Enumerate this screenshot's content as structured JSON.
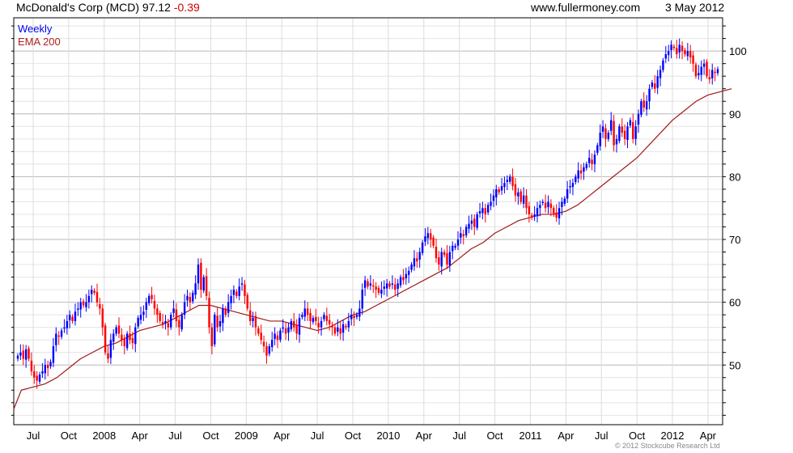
{
  "header": {
    "title": "McDonald's Corp (MCD) 97.12",
    "change": "-0.39",
    "site": "www.fullermoney.com",
    "date": "3 May 2012",
    "copyright": "© 2012 Stockcube Research Ltd"
  },
  "chart_data": {
    "type": "candlestick",
    "title": "McDonald's Corp (MCD)",
    "legend": [
      "Weekly",
      "EMA 200"
    ],
    "legend_position": "top-left",
    "colors": {
      "up": "#0000ff",
      "down": "#ff0000",
      "ema": "#a01818"
    },
    "ylim": [
      40.5,
      105.3
    ],
    "y_ticks": [
      50,
      60,
      70,
      80,
      90,
      100
    ],
    "x_ticks": [
      "Jul",
      "Oct",
      "2008",
      "Apr",
      "Jul",
      "Oct",
      "2009",
      "Apr",
      "Jul",
      "Oct",
      "2010",
      "Apr",
      "Jul",
      "Oct",
      "2011",
      "Apr",
      "Jul",
      "Oct",
      "2012",
      "Apr"
    ],
    "x_tick_months": [
      1,
      4,
      7,
      10,
      13,
      16,
      19,
      22,
      25,
      28,
      31,
      34,
      37,
      40,
      43,
      46,
      49,
      52,
      55,
      58
    ],
    "first_month": "Jun 2007",
    "weekly_close": [
      51.5,
      52,
      51,
      52.5,
      51,
      49,
      48,
      47.5,
      48.5,
      49,
      50,
      49.5,
      50.5,
      53,
      55,
      54.5,
      55.5,
      56,
      57,
      58,
      57,
      58.5,
      59,
      60,
      59.5,
      60,
      61,
      62,
      61.5,
      60,
      59,
      56,
      52,
      51,
      54,
      55,
      56,
      55,
      54,
      53,
      55,
      54,
      53.5,
      56,
      57.5,
      58,
      58.5,
      60,
      61,
      60.5,
      59,
      58,
      57,
      56.5,
      57,
      56,
      58,
      59,
      57,
      56,
      58,
      60,
      61,
      60,
      61.5,
      63,
      66,
      62,
      64,
      61,
      56,
      53,
      58,
      56,
      57,
      59,
      58,
      60,
      61,
      62,
      61,
      62.5,
      63,
      61,
      59,
      57,
      57.5,
      56,
      55,
      54,
      53,
      51.5,
      53,
      54,
      55,
      54,
      55.5,
      56,
      55,
      56,
      57,
      56,
      55,
      57.5,
      58,
      59,
      58,
      57,
      57.5,
      57,
      56,
      57,
      58,
      57,
      56.5,
      56,
      55,
      56,
      55,
      56.5,
      56,
      57,
      58,
      57.5,
      58,
      59,
      62,
      63.5,
      62.5,
      63,
      62.5,
      62,
      61.5,
      62,
      62.5,
      63,
      62.5,
      63,
      62,
      63,
      64,
      63.5,
      64.5,
      65,
      66,
      67,
      66.5,
      68,
      69.5,
      70.5,
      71,
      70,
      69,
      67,
      66,
      68,
      67.5,
      66,
      68,
      69,
      69,
      70,
      71,
      70.5,
      72,
      72.5,
      73,
      72,
      74,
      74.5,
      75,
      74,
      75.5,
      76,
      77,
      78,
      77.5,
      78.5,
      79,
      79.5,
      80,
      78.5,
      77,
      77.5,
      76,
      77,
      75,
      74,
      73.5,
      74,
      75,
      75.5,
      76,
      75,
      76,
      75,
      74,
      73.5,
      75,
      76,
      76.5,
      78,
      78.5,
      79,
      80,
      81,
      80.5,
      81.5,
      82,
      83,
      82,
      83.5,
      85,
      87,
      88,
      86,
      87,
      89,
      85,
      86,
      88,
      87,
      86,
      88,
      89,
      86,
      88,
      90,
      92,
      91,
      92,
      94,
      95,
      94,
      96,
      97,
      98.5,
      99.5,
      100,
      101,
      100.5,
      99.5,
      101,
      100,
      99.5,
      100,
      99,
      98,
      96,
      96.5,
      97.5,
      98,
      96,
      95.5,
      97,
      96.5,
      97.12
    ],
    "ema200_monthly": [
      46,
      46.5,
      47,
      48,
      49.5,
      51,
      52,
      53,
      53.5,
      54.5,
      55.5,
      56,
      56.5,
      57.5,
      58.5,
      59.5,
      59.5,
      59,
      58.5,
      58,
      57.5,
      57,
      57,
      56.5,
      56,
      55.5,
      56,
      57,
      58,
      58.5,
      59.5,
      60.5,
      61.5,
      62.5,
      63.5,
      64.5,
      65.5,
      67,
      68.5,
      69.5,
      71,
      72,
      73,
      73.5,
      74,
      74,
      74.5,
      75.5,
      77,
      78.5,
      80,
      81.5,
      83,
      85,
      87,
      89,
      90.5,
      92,
      93,
      93.5,
      94
    ]
  }
}
